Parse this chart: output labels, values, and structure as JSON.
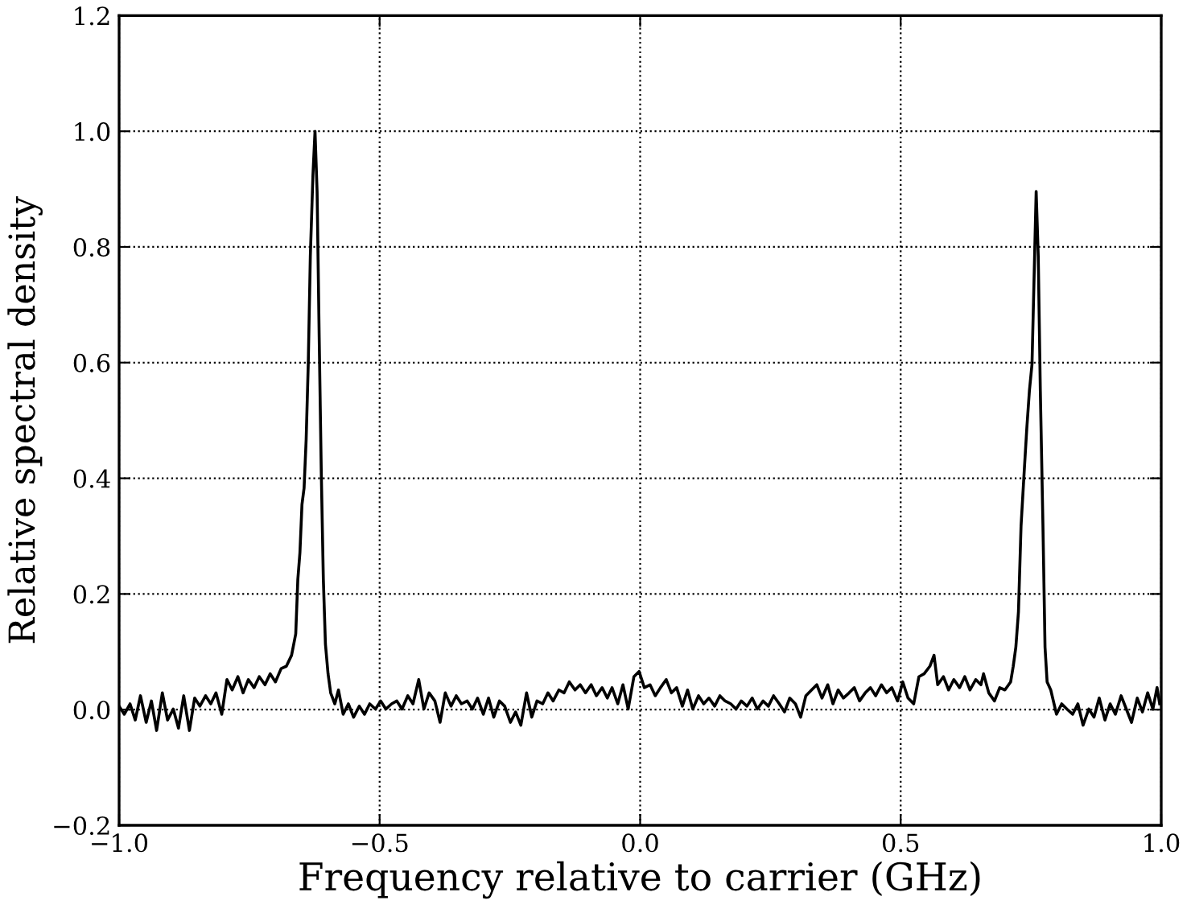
{
  "chart_data": {
    "type": "line",
    "xlabel": "Frequency relative to carrier (GHz)",
    "ylabel": "Relative spectral density",
    "xlim": [
      -1.0,
      1.0
    ],
    "ylim": [
      -0.2,
      1.2
    ],
    "xticks": [
      {
        "value": -1.0,
        "label": "−1.0"
      },
      {
        "value": -0.5,
        "label": "−0.5"
      },
      {
        "value": 0.0,
        "label": "0.0"
      },
      0.5,
      {
        "value": 1.0,
        "label": "1.0"
      }
    ],
    "yticks": [
      {
        "value": -0.2,
        "label": "−0.2"
      },
      {
        "value": 0.0,
        "label": "0.0"
      },
      0.2,
      0.4,
      0.6,
      0.8,
      {
        "value": 1.0,
        "label": "1.0"
      },
      1.2
    ],
    "grid": true,
    "line_style": "solid",
    "series": [
      {
        "color": "#000000",
        "x": [
          -1.0,
          -0.99,
          -0.979,
          -0.969,
          -0.959,
          -0.948,
          -0.938,
          -0.928,
          -0.917,
          -0.907,
          -0.896,
          -0.886,
          -0.876,
          -0.865,
          -0.855,
          -0.845,
          -0.834,
          -0.824,
          -0.814,
          -0.803,
          -0.793,
          -0.783,
          -0.772,
          -0.762,
          -0.752,
          -0.741,
          -0.731,
          -0.72,
          -0.71,
          -0.7,
          -0.689,
          -0.679,
          -0.669,
          -0.661,
          -0.657,
          -0.653,
          -0.649,
          -0.645,
          -0.641,
          -0.637,
          -0.633,
          -0.628,
          -0.624,
          -0.62,
          -0.616,
          -0.612,
          -0.608,
          -0.604,
          -0.599,
          -0.594,
          -0.586,
          -0.579,
          -0.57,
          -0.56,
          -0.55,
          -0.539,
          -0.529,
          -0.519,
          -0.508,
          -0.498,
          -0.488,
          -0.477,
          -0.467,
          -0.457,
          -0.446,
          -0.436,
          -0.425,
          -0.415,
          -0.405,
          -0.394,
          -0.384,
          -0.374,
          -0.363,
          -0.353,
          -0.343,
          -0.332,
          -0.322,
          -0.312,
          -0.301,
          -0.291,
          -0.281,
          -0.27,
          -0.26,
          -0.249,
          -0.239,
          -0.229,
          -0.218,
          -0.208,
          -0.198,
          -0.187,
          -0.177,
          -0.167,
          -0.156,
          -0.146,
          -0.136,
          -0.125,
          -0.115,
          -0.105,
          -0.094,
          -0.084,
          -0.073,
          -0.063,
          -0.054,
          -0.043,
          -0.033,
          -0.023,
          -0.012,
          -0.002,
          0.008,
          0.019,
          0.029,
          0.039,
          0.05,
          0.06,
          0.07,
          0.081,
          0.091,
          0.101,
          0.112,
          0.122,
          0.132,
          0.143,
          0.153,
          0.163,
          0.174,
          0.184,
          0.194,
          0.205,
          0.215,
          0.225,
          0.236,
          0.246,
          0.256,
          0.267,
          0.277,
          0.287,
          0.298,
          0.308,
          0.318,
          0.329,
          0.339,
          0.349,
          0.36,
          0.37,
          0.38,
          0.39,
          0.401,
          0.411,
          0.421,
          0.432,
          0.442,
          0.452,
          0.463,
          0.473,
          0.483,
          0.494,
          0.504,
          0.514,
          0.525,
          0.535,
          0.545,
          0.556,
          0.564,
          0.571,
          0.582,
          0.592,
          0.602,
          0.613,
          0.623,
          0.633,
          0.644,
          0.654,
          0.659,
          0.669,
          0.68,
          0.69,
          0.7,
          0.711,
          0.716,
          0.721,
          0.726,
          0.731,
          0.737,
          0.742,
          0.747,
          0.752,
          0.757,
          0.76,
          0.764,
          0.768,
          0.773,
          0.777,
          0.781,
          0.788,
          0.799,
          0.809,
          0.819,
          0.83,
          0.84,
          0.85,
          0.861,
          0.871,
          0.881,
          0.892,
          0.902,
          0.912,
          0.923,
          0.933,
          0.943,
          0.954,
          0.964,
          0.974,
          0.984,
          0.992,
          0.997
        ],
        "values": [
          0.006,
          -0.008,
          0.01,
          -0.018,
          0.024,
          -0.022,
          0.015,
          -0.036,
          0.029,
          -0.018,
          0.001,
          -0.032,
          0.024,
          -0.036,
          0.02,
          0.006,
          0.024,
          0.01,
          0.029,
          -0.008,
          0.052,
          0.034,
          0.057,
          0.029,
          0.052,
          0.038,
          0.057,
          0.043,
          0.062,
          0.048,
          0.071,
          0.075,
          0.094,
          0.131,
          0.225,
          0.271,
          0.355,
          0.383,
          0.467,
          0.597,
          0.784,
          0.924,
          1.0,
          0.896,
          0.644,
          0.411,
          0.225,
          0.113,
          0.062,
          0.029,
          0.01,
          0.034,
          -0.008,
          0.01,
          -0.013,
          0.006,
          -0.008,
          0.01,
          0.001,
          0.015,
          0.001,
          0.01,
          0.015,
          0.001,
          0.024,
          0.01,
          0.052,
          0.001,
          0.029,
          0.015,
          -0.022,
          0.029,
          0.006,
          0.024,
          0.01,
          0.015,
          0.001,
          0.02,
          -0.008,
          0.02,
          -0.013,
          0.015,
          0.006,
          -0.022,
          -0.004,
          -0.027,
          0.029,
          -0.013,
          0.015,
          0.01,
          0.029,
          0.015,
          0.034,
          0.029,
          0.048,
          0.034,
          0.043,
          0.029,
          0.043,
          0.024,
          0.038,
          0.02,
          0.038,
          0.01,
          0.043,
          0.001,
          0.057,
          0.066,
          0.038,
          0.043,
          0.024,
          0.038,
          0.052,
          0.029,
          0.038,
          0.006,
          0.034,
          0.001,
          0.024,
          0.01,
          0.02,
          0.006,
          0.024,
          0.015,
          0.01,
          0.001,
          0.015,
          0.006,
          0.02,
          0.001,
          0.015,
          0.006,
          0.024,
          0.01,
          -0.004,
          0.02,
          0.01,
          -0.013,
          0.024,
          0.034,
          0.043,
          0.02,
          0.043,
          0.01,
          0.034,
          0.02,
          0.029,
          0.038,
          0.015,
          0.029,
          0.038,
          0.024,
          0.043,
          0.029,
          0.038,
          0.015,
          0.048,
          0.02,
          0.01,
          0.057,
          0.062,
          0.075,
          0.094,
          0.043,
          0.057,
          0.034,
          0.052,
          0.038,
          0.057,
          0.034,
          0.052,
          0.043,
          0.062,
          0.029,
          0.015,
          0.038,
          0.034,
          0.048,
          0.075,
          0.108,
          0.169,
          0.318,
          0.411,
          0.486,
          0.551,
          0.597,
          0.784,
          0.896,
          0.784,
          0.551,
          0.318,
          0.108,
          0.048,
          0.034,
          -0.008,
          0.01,
          0.001,
          -0.008,
          0.01,
          -0.027,
          0.001,
          -0.013,
          0.02,
          -0.018,
          0.01,
          -0.008,
          0.024,
          0.001,
          -0.022,
          0.02,
          -0.004,
          0.029,
          0.001,
          0.038,
          0.01
        ]
      }
    ]
  }
}
